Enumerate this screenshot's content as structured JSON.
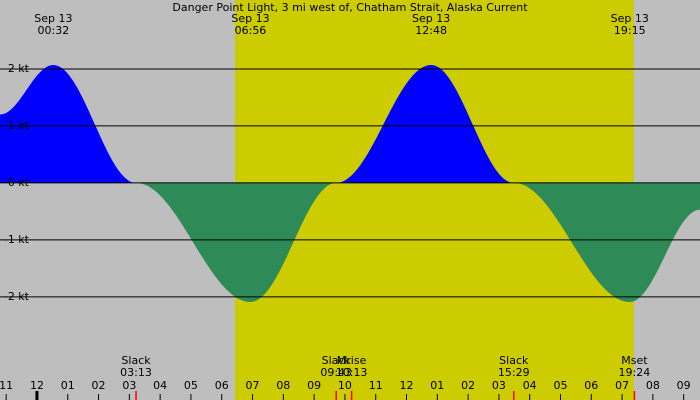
{
  "chart_data": {
    "type": "tide-current",
    "title": "Danger Point Light, 3 mi west of, Chatham Strait, Alaska Current",
    "x": [
      -1.2,
      0.533,
      3.217,
      6.933,
      9.717,
      12.8,
      15.483,
      19.25,
      21.53
    ],
    "values": [
      1.2,
      2.07,
      0,
      -2.09,
      0,
      2.07,
      0,
      -2.09,
      -0.47
    ],
    "color_flood": "#0000ff",
    "color_ebb": "#2e8b57",
    "background": "#bebebe",
    "daylight": [
      6.43,
      19.38
    ],
    "daylight_color": "#cccc00",
    "xlim": [
      -1.2,
      21.53
    ],
    "ylim": [
      -3.81,
      3.21
    ],
    "yticks": [
      {
        "value": 2,
        "label": "2 kt"
      },
      {
        "value": 1,
        "label": "1 kt"
      },
      {
        "value": 0,
        "label": "0 kt"
      },
      {
        "value": -1,
        "label": "-1 kt"
      },
      {
        "value": -2,
        "label": "-2 kt"
      }
    ],
    "xticks": [
      {
        "value": -1,
        "label": "11"
      },
      {
        "value": 0,
        "label": "12"
      },
      {
        "value": 1,
        "label": "01"
      },
      {
        "value": 2,
        "label": "02"
      },
      {
        "value": 3,
        "label": "03"
      },
      {
        "value": 4,
        "label": "04"
      },
      {
        "value": 5,
        "label": "05"
      },
      {
        "value": 6,
        "label": "06"
      },
      {
        "value": 7,
        "label": "07"
      },
      {
        "value": 8,
        "label": "08"
      },
      {
        "value": 9,
        "label": "09"
      },
      {
        "value": 10,
        "label": "10"
      },
      {
        "value": 11,
        "label": "11"
      },
      {
        "value": 12,
        "label": "12"
      },
      {
        "value": 13,
        "label": "01"
      },
      {
        "value": 14,
        "label": "02"
      },
      {
        "value": 15,
        "label": "03"
      },
      {
        "value": 16,
        "label": "04"
      },
      {
        "value": 17,
        "label": "05"
      },
      {
        "value": 18,
        "label": "06"
      },
      {
        "value": 19,
        "label": "07"
      },
      {
        "value": 20,
        "label": "08"
      },
      {
        "value": 21,
        "label": "09"
      }
    ],
    "peak_labels": [
      {
        "date": "Sep 13",
        "time": "00:32",
        "x": 0.533
      },
      {
        "date": "Sep 13",
        "time": "06:56",
        "x": 6.933
      },
      {
        "date": "Sep 13",
        "time": "12:48",
        "x": 12.8
      },
      {
        "date": "Sep 13",
        "time": "19:15",
        "x": 19.25
      }
    ],
    "events": [
      {
        "label": "Slack",
        "time": "03:13",
        "x": 3.217
      },
      {
        "label": "Slack",
        "time": "09:43",
        "x": 9.717
      },
      {
        "label": "Mrise",
        "time": "10:13",
        "x": 10.217
      },
      {
        "label": "Slack",
        "time": "15:29",
        "x": 15.483
      },
      {
        "label": "Mset",
        "time": "19:24",
        "x": 19.4
      }
    ]
  }
}
